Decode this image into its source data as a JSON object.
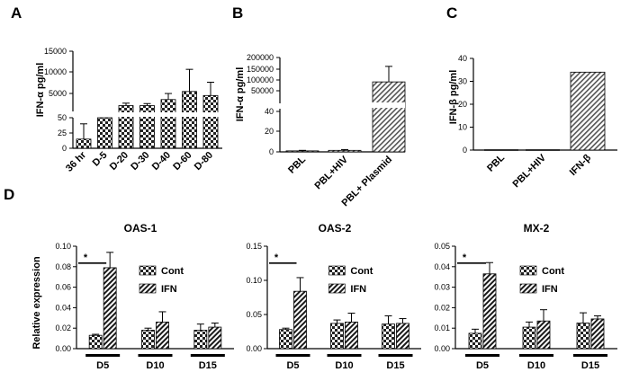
{
  "figure": {
    "panel_letters": [
      "A",
      "B",
      "C",
      "D"
    ]
  },
  "chart_data": [
    {
      "id": "A",
      "type": "bar",
      "title": "",
      "ylabel": "IFN-α pg/ml",
      "categories": [
        "36 hr",
        "D-5",
        "D-20",
        "D-30",
        "D-40",
        "D-60",
        "D-80"
      ],
      "values": [
        15,
        50,
        1500,
        1500,
        3000,
        5000,
        4000
      ],
      "errors": [
        25,
        0,
        600,
        500,
        1500,
        5500,
        3300
      ],
      "axis_break": {
        "lower_range": [
          0,
          50
        ],
        "upper_range": [
          50,
          15000
        ]
      },
      "yticks_lower": [
        "0",
        "25",
        "50"
      ],
      "yticks_upper": [
        "5000",
        "10000",
        "15000"
      ],
      "pattern": "checker"
    },
    {
      "id": "B",
      "type": "bar",
      "title": "",
      "ylabel": "IFN-α pg/ml",
      "categories": [
        "PBL",
        "PBL+HIV",
        "PBL+ Plasmid"
      ],
      "values": [
        1,
        1.5,
        90000
      ],
      "errors": [
        0.5,
        0.8,
        70000
      ],
      "axis_break": {
        "lower_range": [
          0,
          50
        ],
        "upper_range": [
          50000,
          200000
        ]
      },
      "yticks_lower": [
        "0",
        "20",
        "40"
      ],
      "yticks_upper": [
        "50000",
        "100000",
        "150000",
        "200000"
      ],
      "pattern": "diagonal"
    },
    {
      "id": "C",
      "type": "bar",
      "title": "",
      "ylabel": "IFN-β pg/ml",
      "categories": [
        "PBL",
        "PBL+HIV",
        "IFN-β"
      ],
      "values": [
        0,
        0,
        34
      ],
      "errors": [
        0,
        0,
        0
      ],
      "ylim": [
        0,
        40
      ],
      "yticks": [
        "0",
        "10",
        "20",
        "30",
        "40"
      ],
      "pattern": "diagonal"
    },
    {
      "id": "D1",
      "type": "bar",
      "title": "OAS-1",
      "ylabel": "Relative expression",
      "categories": [
        "D5",
        "D10",
        "D15"
      ],
      "series": [
        {
          "name": "Cont",
          "values": [
            0.013,
            0.018,
            0.018
          ],
          "errors": [
            0.001,
            0.002,
            0.006
          ]
        },
        {
          "name": "IFN",
          "values": [
            0.079,
            0.026,
            0.021
          ],
          "errors": [
            0.015,
            0.01,
            0.004
          ]
        }
      ],
      "ylim": [
        0,
        0.1
      ],
      "yticks": [
        "0.00",
        "0.02",
        "0.04",
        "0.06",
        "0.08",
        "0.10"
      ],
      "significance": "*"
    },
    {
      "id": "D2",
      "type": "bar",
      "title": "OAS-2",
      "ylabel": "",
      "categories": [
        "D5",
        "D10",
        "D15"
      ],
      "series": [
        {
          "name": "Cont",
          "values": [
            0.028,
            0.037,
            0.036
          ],
          "errors": [
            0.002,
            0.005,
            0.012
          ]
        },
        {
          "name": "IFN",
          "values": [
            0.084,
            0.039,
            0.037
          ],
          "errors": [
            0.02,
            0.013,
            0.007
          ]
        }
      ],
      "ylim": [
        0,
        0.15
      ],
      "yticks": [
        "0.00",
        "0.05",
        "0.10",
        "0.15"
      ],
      "significance": "*"
    },
    {
      "id": "D3",
      "type": "bar",
      "title": "MX-2",
      "ylabel": "",
      "categories": [
        "D5",
        "D10",
        "D15"
      ],
      "series": [
        {
          "name": "Cont",
          "values": [
            0.0075,
            0.0105,
            0.0125
          ],
          "errors": [
            0.002,
            0.0025,
            0.005
          ]
        },
        {
          "name": "IFN",
          "values": [
            0.0365,
            0.0135,
            0.0145
          ],
          "errors": [
            0.0055,
            0.0055,
            0.0015
          ]
        }
      ],
      "ylim": [
        0,
        0.05
      ],
      "yticks": [
        "0.00",
        "0.01",
        "0.02",
        "0.03",
        "0.04",
        "0.05"
      ],
      "significance": "*"
    }
  ]
}
